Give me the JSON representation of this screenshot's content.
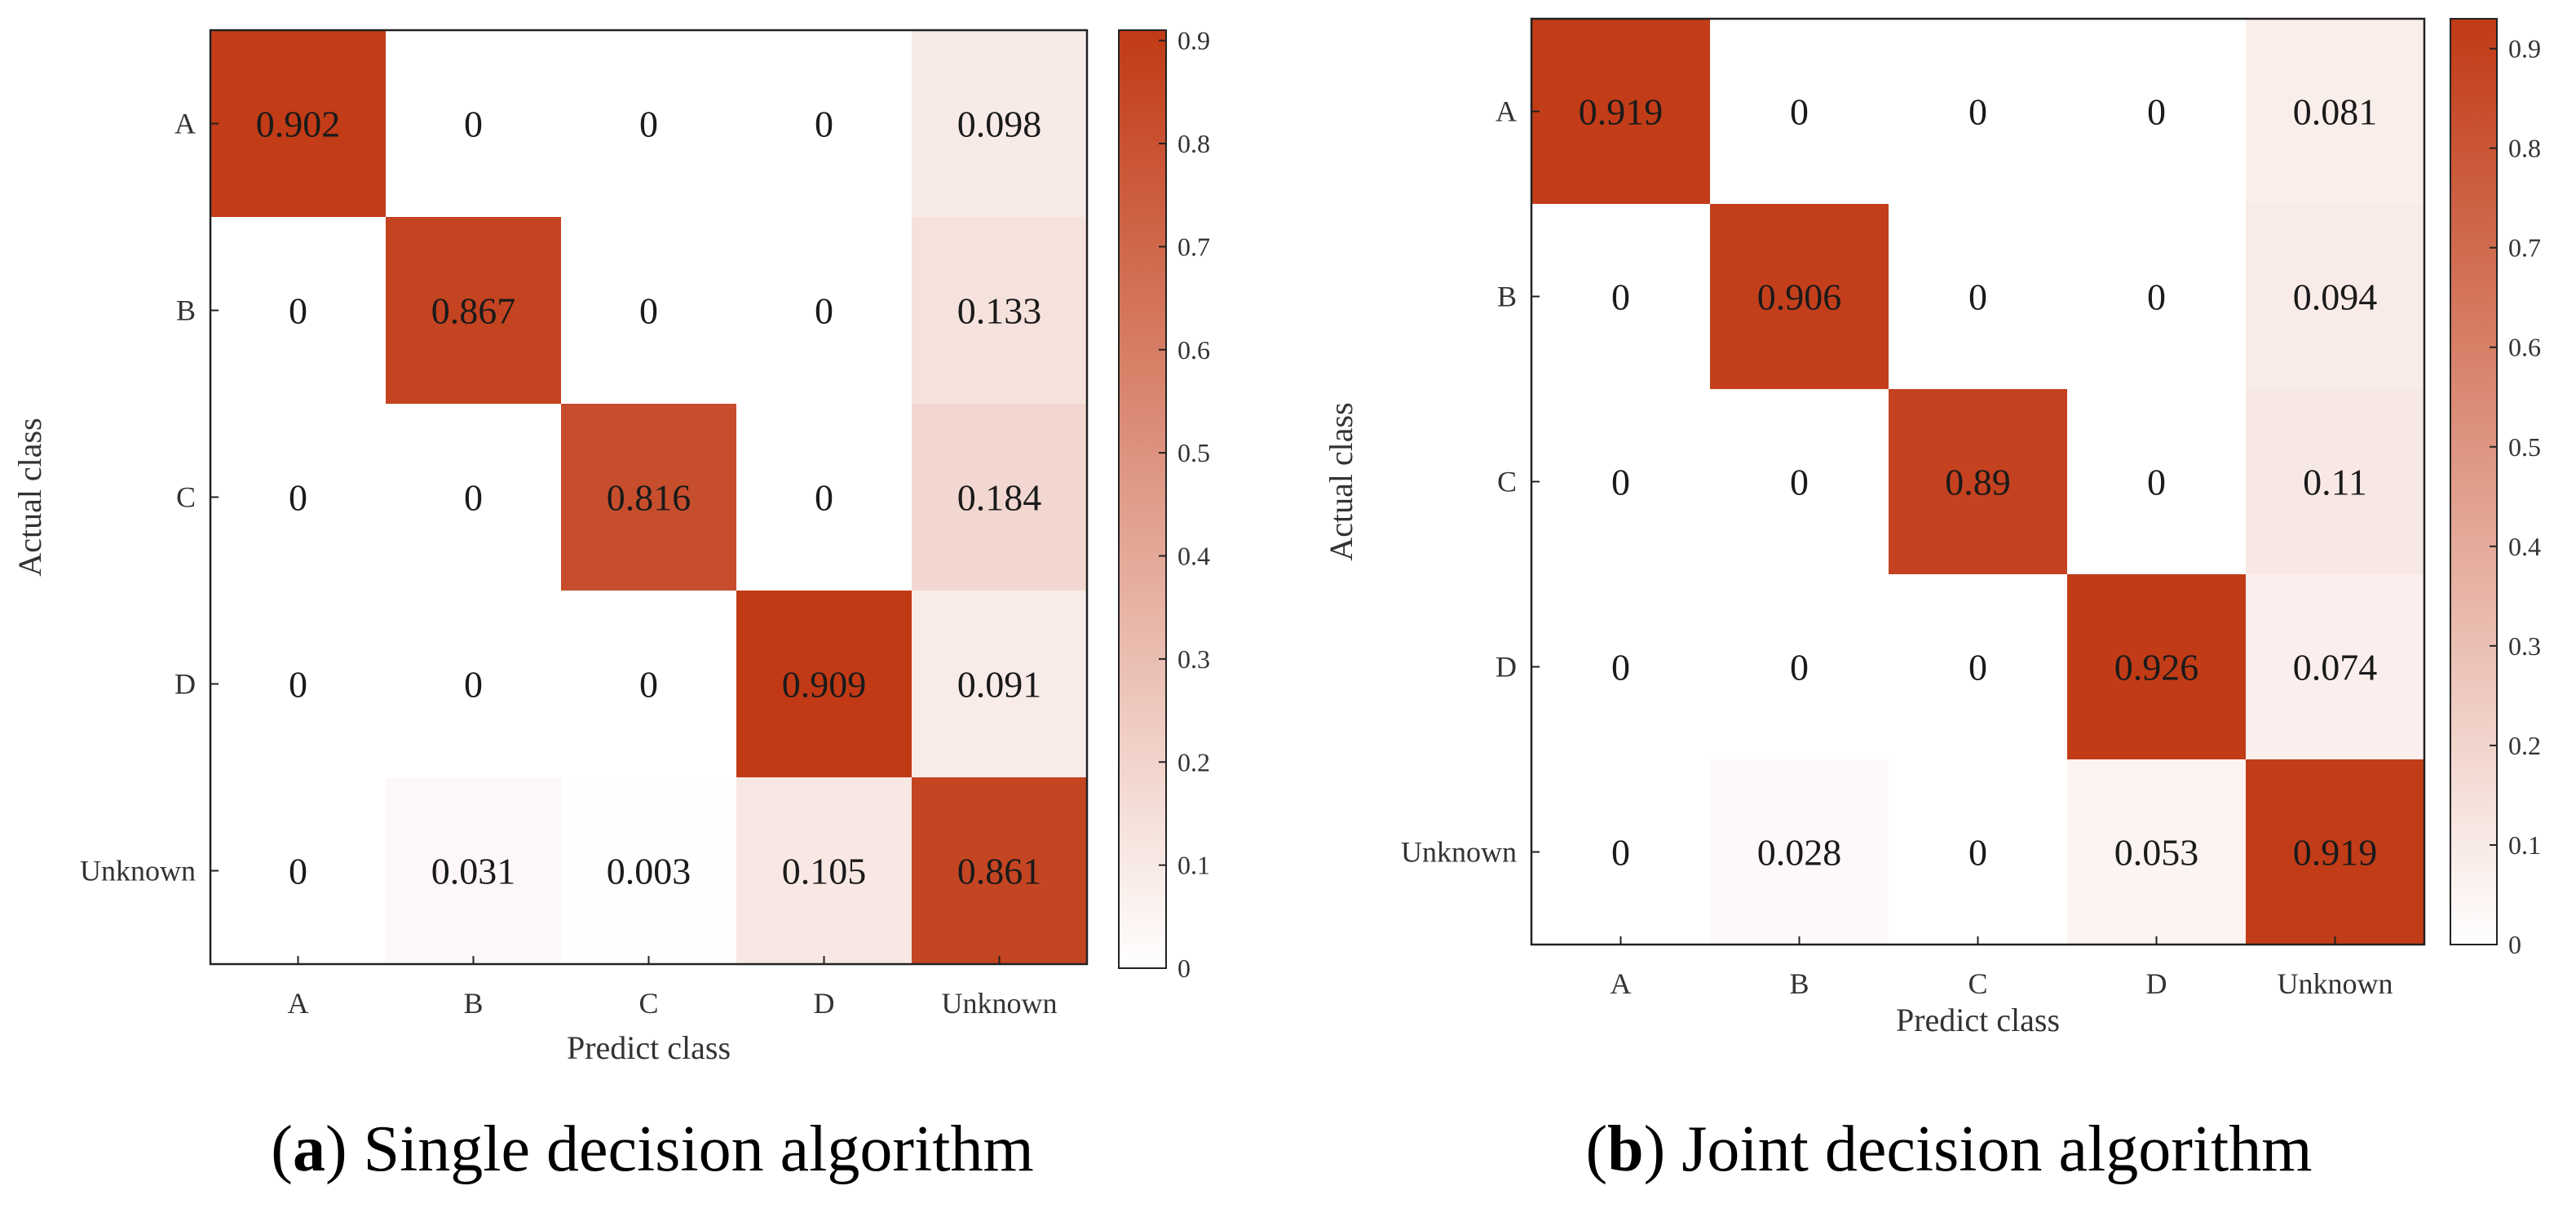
{
  "chart_data": [
    {
      "type": "heatmap",
      "title": "",
      "caption_letter": "a",
      "caption_text": "Single decision algorithm",
      "xlabel": "Predict class",
      "ylabel": "Actual class",
      "x_categories": [
        "A",
        "B",
        "C",
        "D",
        "Unknown"
      ],
      "y_categories": [
        "A",
        "B",
        "C",
        "D",
        "Unknown"
      ],
      "values": [
        [
          "0.902",
          "0",
          "0",
          "0",
          "0.098"
        ],
        [
          "0",
          "0.867",
          "0",
          "0",
          "0.133"
        ],
        [
          "0",
          "0",
          "0.816",
          "0",
          "0.184"
        ],
        [
          "0",
          "0",
          "0",
          "0.909",
          "0.091"
        ],
        [
          "0",
          "0.031",
          "0.003",
          "0.105",
          "0.861"
        ]
      ],
      "colorbar": {
        "min": 0,
        "max": 0.91,
        "ticks": [
          "0",
          "0.1",
          "0.2",
          "0.3",
          "0.4",
          "0.5",
          "0.6",
          "0.7",
          "0.8",
          "0.9"
        ],
        "low_color": "#ffffff",
        "high_color": "#c13a15"
      }
    },
    {
      "type": "heatmap",
      "title": "",
      "caption_letter": "b",
      "caption_text": "Joint decision algorithm",
      "xlabel": "Predict class",
      "ylabel": "Actual class",
      "x_categories": [
        "A",
        "B",
        "C",
        "D",
        "Unknown"
      ],
      "y_categories": [
        "A",
        "B",
        "C",
        "D",
        "Unknown"
      ],
      "values": [
        [
          "0.919",
          "0",
          "0",
          "0",
          "0.081"
        ],
        [
          "0",
          "0.906",
          "0",
          "0",
          "0.094"
        ],
        [
          "0",
          "0",
          "0.89",
          "0",
          "0.11"
        ],
        [
          "0",
          "0",
          "0",
          "0.926",
          "0.074"
        ],
        [
          "0",
          "0.028",
          "0",
          "0.053",
          "0.919"
        ]
      ],
      "colorbar": {
        "min": 0,
        "max": 0.93,
        "ticks": [
          "0",
          "0.1",
          "0.2",
          "0.3",
          "0.4",
          "0.5",
          "0.6",
          "0.7",
          "0.8",
          "0.9"
        ],
        "low_color": "#ffffff",
        "high_color": "#c13a15"
      }
    }
  ]
}
